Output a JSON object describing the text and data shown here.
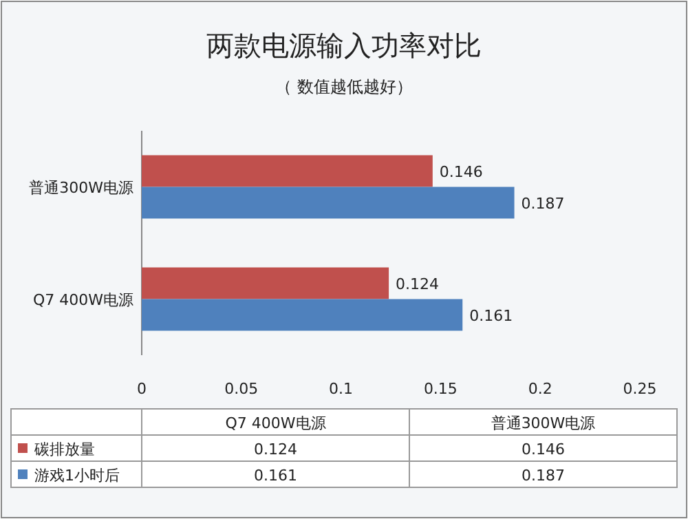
{
  "chart_data": {
    "type": "bar",
    "orientation": "horizontal",
    "title": "两款电源输入功率对比",
    "subtitle": "（ 数值越低越好）",
    "categories": [
      "普通300W电源",
      "Q7 400W电源"
    ],
    "series": [
      {
        "name": "碳排放量",
        "color": "#c0504d",
        "values": [
          0.146,
          0.124
        ]
      },
      {
        "name": "游戏1小时后",
        "color": "#4f81bd",
        "values": [
          0.187,
          0.161
        ]
      }
    ],
    "annotations": [
      "0.124",
      "0.146",
      "0.161",
      "0.187"
    ],
    "xlim": [
      0,
      0.25
    ],
    "xticks": [
      0,
      0.05,
      0.1,
      0.15,
      0.2,
      0.25
    ],
    "data_labels": true,
    "legend": "bottom",
    "grid": false
  }
}
